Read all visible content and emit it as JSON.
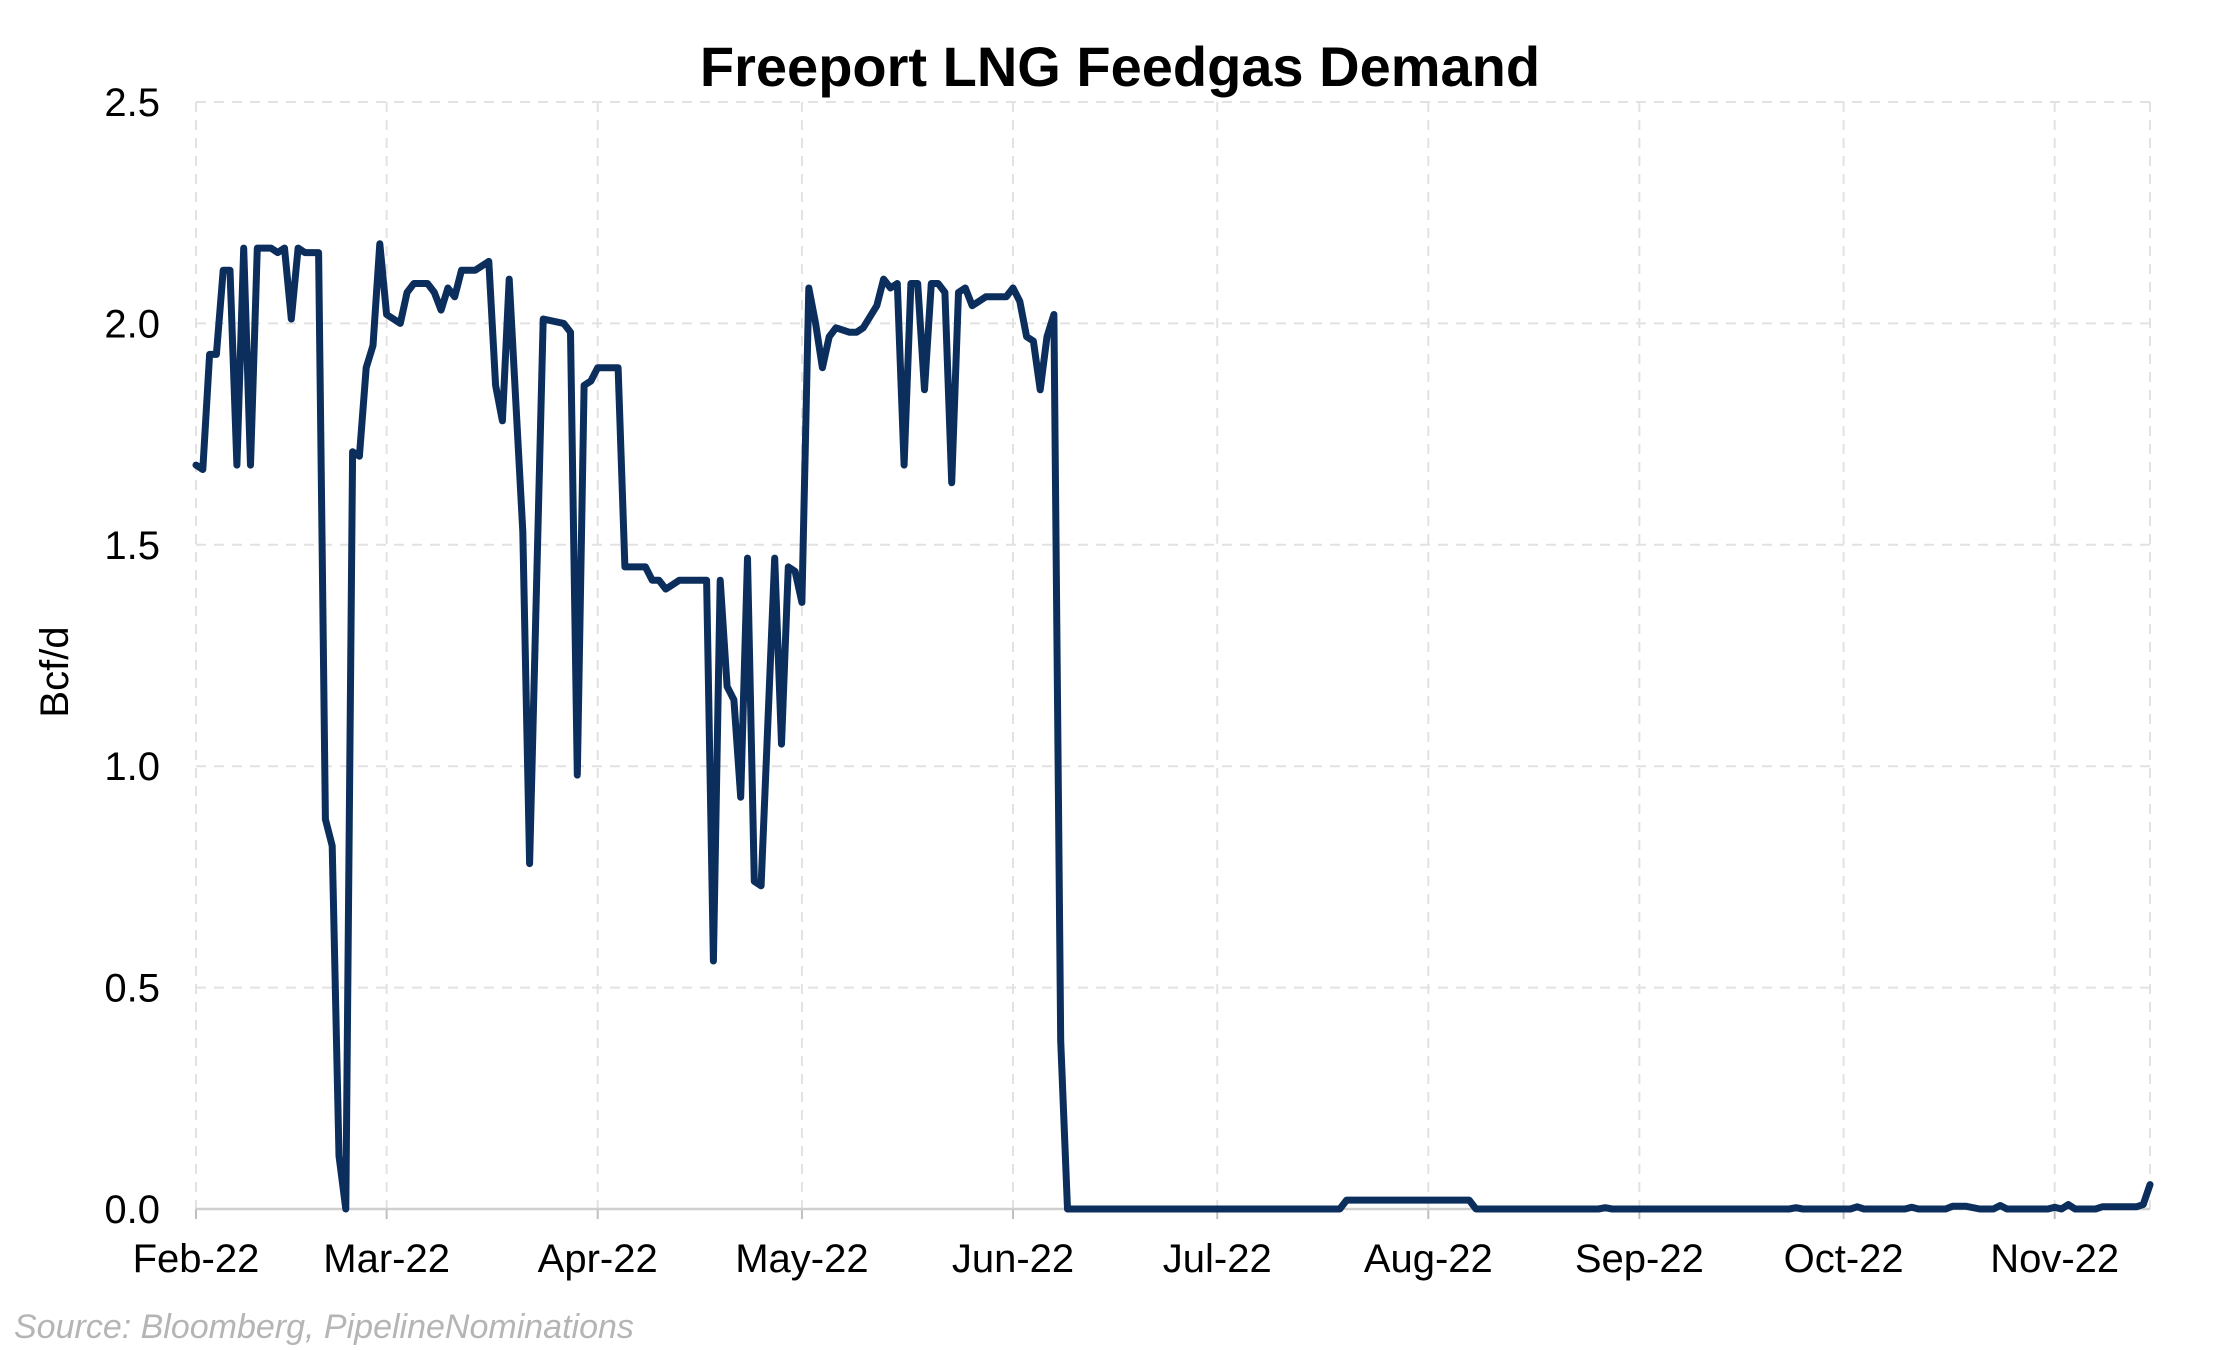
{
  "chart_data": {
    "type": "line",
    "title": "Freeport LNG Feedgas Demand",
    "xlabel": "",
    "ylabel": "Bcf/d",
    "ylim": [
      0,
      2.5
    ],
    "yticks": [
      "0.0",
      "0.5",
      "1.0",
      "1.5",
      "2.0",
      "2.5"
    ],
    "xlim": [
      "2022-02-01",
      "2022-11-15"
    ],
    "xticks": [
      {
        "date": "2022-02-01",
        "label": "Feb-22"
      },
      {
        "date": "2022-03-01",
        "label": "Mar-22"
      },
      {
        "date": "2022-04-01",
        "label": "Apr-22"
      },
      {
        "date": "2022-05-01",
        "label": "May-22"
      },
      {
        "date": "2022-06-01",
        "label": "Jun-22"
      },
      {
        "date": "2022-07-01",
        "label": "Jul-22"
      },
      {
        "date": "2022-08-01",
        "label": "Aug-22"
      },
      {
        "date": "2022-09-01",
        "label": "Sep-22"
      },
      {
        "date": "2022-10-01",
        "label": "Oct-22"
      },
      {
        "date": "2022-11-01",
        "label": "Nov-22"
      }
    ],
    "grid": true,
    "series": [
      {
        "name": "",
        "color": "#0b2e5c",
        "points": [
          [
            "2022-02-01",
            1.68
          ],
          [
            "2022-02-02",
            1.67
          ],
          [
            "2022-02-03",
            1.93
          ],
          [
            "2022-02-04",
            1.93
          ],
          [
            "2022-02-05",
            2.12
          ],
          [
            "2022-02-06",
            2.12
          ],
          [
            "2022-02-07",
            1.68
          ],
          [
            "2022-02-08",
            2.17
          ],
          [
            "2022-02-09",
            1.68
          ],
          [
            "2022-02-10",
            2.17
          ],
          [
            "2022-02-12",
            2.17
          ],
          [
            "2022-02-13",
            2.16
          ],
          [
            "2022-02-14",
            2.17
          ],
          [
            "2022-02-15",
            2.01
          ],
          [
            "2022-02-16",
            2.17
          ],
          [
            "2022-02-17",
            2.16
          ],
          [
            "2022-02-19",
            2.16
          ],
          [
            "2022-02-20",
            0.88
          ],
          [
            "2022-02-21",
            0.82
          ],
          [
            "2022-02-22",
            0.12
          ],
          [
            "2022-02-23",
            0.0
          ],
          [
            "2022-02-24",
            1.71
          ],
          [
            "2022-02-25",
            1.7
          ],
          [
            "2022-02-26",
            1.9
          ],
          [
            "2022-02-27",
            1.95
          ],
          [
            "2022-02-28",
            2.18
          ],
          [
            "2022-03-01",
            2.02
          ],
          [
            "2022-03-03",
            2.0
          ],
          [
            "2022-03-04",
            2.07
          ],
          [
            "2022-03-05",
            2.09
          ],
          [
            "2022-03-07",
            2.09
          ],
          [
            "2022-03-08",
            2.07
          ],
          [
            "2022-03-09",
            2.03
          ],
          [
            "2022-03-10",
            2.08
          ],
          [
            "2022-03-11",
            2.06
          ],
          [
            "2022-03-12",
            2.12
          ],
          [
            "2022-03-14",
            2.12
          ],
          [
            "2022-03-16",
            2.14
          ],
          [
            "2022-03-17",
            1.86
          ],
          [
            "2022-03-18",
            1.78
          ],
          [
            "2022-03-19",
            2.1
          ],
          [
            "2022-03-21",
            1.53
          ],
          [
            "2022-03-22",
            0.78
          ],
          [
            "2022-03-24",
            2.01
          ],
          [
            "2022-03-27",
            2.0
          ],
          [
            "2022-03-28",
            1.98
          ],
          [
            "2022-03-29",
            0.98
          ],
          [
            "2022-03-30",
            1.86
          ],
          [
            "2022-03-31",
            1.87
          ],
          [
            "2022-04-01",
            1.9
          ],
          [
            "2022-04-04",
            1.9
          ],
          [
            "2022-04-05",
            1.45
          ],
          [
            "2022-04-08",
            1.45
          ],
          [
            "2022-04-09",
            1.42
          ],
          [
            "2022-04-10",
            1.42
          ],
          [
            "2022-04-11",
            1.4
          ],
          [
            "2022-04-12",
            1.41
          ],
          [
            "2022-04-13",
            1.42
          ],
          [
            "2022-04-17",
            1.42
          ],
          [
            "2022-04-18",
            0.56
          ],
          [
            "2022-04-19",
            1.42
          ],
          [
            "2022-04-20",
            1.18
          ],
          [
            "2022-04-21",
            1.15
          ],
          [
            "2022-04-22",
            0.93
          ],
          [
            "2022-04-23",
            1.47
          ],
          [
            "2022-04-24",
            0.74
          ],
          [
            "2022-04-25",
            0.73
          ],
          [
            "2022-04-27",
            1.47
          ],
          [
            "2022-04-28",
            1.05
          ],
          [
            "2022-04-29",
            1.45
          ],
          [
            "2022-04-30",
            1.44
          ],
          [
            "2022-05-01",
            1.37
          ],
          [
            "2022-05-02",
            2.08
          ],
          [
            "2022-05-03",
            2.0
          ],
          [
            "2022-05-04",
            1.9
          ],
          [
            "2022-05-05",
            1.97
          ],
          [
            "2022-05-06",
            1.99
          ],
          [
            "2022-05-08",
            1.98
          ],
          [
            "2022-05-09",
            1.98
          ],
          [
            "2022-05-10",
            1.99
          ],
          [
            "2022-05-12",
            2.04
          ],
          [
            "2022-05-13",
            2.1
          ],
          [
            "2022-05-14",
            2.08
          ],
          [
            "2022-05-15",
            2.09
          ],
          [
            "2022-05-16",
            1.68
          ],
          [
            "2022-05-17",
            2.09
          ],
          [
            "2022-05-18",
            2.09
          ],
          [
            "2022-05-19",
            1.85
          ],
          [
            "2022-05-20",
            2.09
          ],
          [
            "2022-05-21",
            2.09
          ],
          [
            "2022-05-22",
            2.07
          ],
          [
            "2022-05-23",
            1.64
          ],
          [
            "2022-05-24",
            2.07
          ],
          [
            "2022-05-25",
            2.08
          ],
          [
            "2022-05-26",
            2.04
          ],
          [
            "2022-05-27",
            2.05
          ],
          [
            "2022-05-28",
            2.06
          ],
          [
            "2022-05-31",
            2.06
          ],
          [
            "2022-06-01",
            2.08
          ],
          [
            "2022-06-02",
            2.05
          ],
          [
            "2022-06-03",
            1.97
          ],
          [
            "2022-06-04",
            1.96
          ],
          [
            "2022-06-05",
            1.85
          ],
          [
            "2022-06-06",
            1.97
          ],
          [
            "2022-06-07",
            2.02
          ],
          [
            "2022-06-08",
            0.38
          ],
          [
            "2022-06-09",
            0.0
          ],
          [
            "2022-07-19",
            0.0
          ],
          [
            "2022-07-20",
            0.02
          ],
          [
            "2022-07-27",
            0.02
          ],
          [
            "2022-07-28",
            0.02
          ],
          [
            "2022-08-07",
            0.02
          ],
          [
            "2022-08-08",
            0.0
          ],
          [
            "2022-08-26",
            0.0
          ],
          [
            "2022-08-27",
            0.003
          ],
          [
            "2022-08-28",
            0.0
          ],
          [
            "2022-09-23",
            0.0
          ],
          [
            "2022-09-24",
            0.003
          ],
          [
            "2022-09-25",
            0.0
          ],
          [
            "2022-10-02",
            0.0
          ],
          [
            "2022-10-03",
            0.005
          ],
          [
            "2022-10-04",
            0.0
          ],
          [
            "2022-10-10",
            0.0
          ],
          [
            "2022-10-11",
            0.004
          ],
          [
            "2022-10-12",
            0.0
          ],
          [
            "2022-10-16",
            0.0
          ],
          [
            "2022-10-17",
            0.006
          ],
          [
            "2022-10-19",
            0.006
          ],
          [
            "2022-10-21",
            0.0
          ],
          [
            "2022-10-23",
            0.0
          ],
          [
            "2022-10-24",
            0.008
          ],
          [
            "2022-10-25",
            0.0
          ],
          [
            "2022-10-31",
            0.0
          ],
          [
            "2022-11-01",
            0.004
          ],
          [
            "2022-11-02",
            0.0
          ],
          [
            "2022-11-03",
            0.01
          ],
          [
            "2022-11-04",
            0.0
          ],
          [
            "2022-11-07",
            0.0
          ],
          [
            "2022-11-08",
            0.005
          ],
          [
            "2022-11-10",
            0.005
          ],
          [
            "2022-11-13",
            0.005
          ],
          [
            "2022-11-14",
            0.01
          ],
          [
            "2022-11-15",
            0.055
          ]
        ]
      }
    ]
  },
  "source": "Source: Bloomberg, PipelineNominations"
}
